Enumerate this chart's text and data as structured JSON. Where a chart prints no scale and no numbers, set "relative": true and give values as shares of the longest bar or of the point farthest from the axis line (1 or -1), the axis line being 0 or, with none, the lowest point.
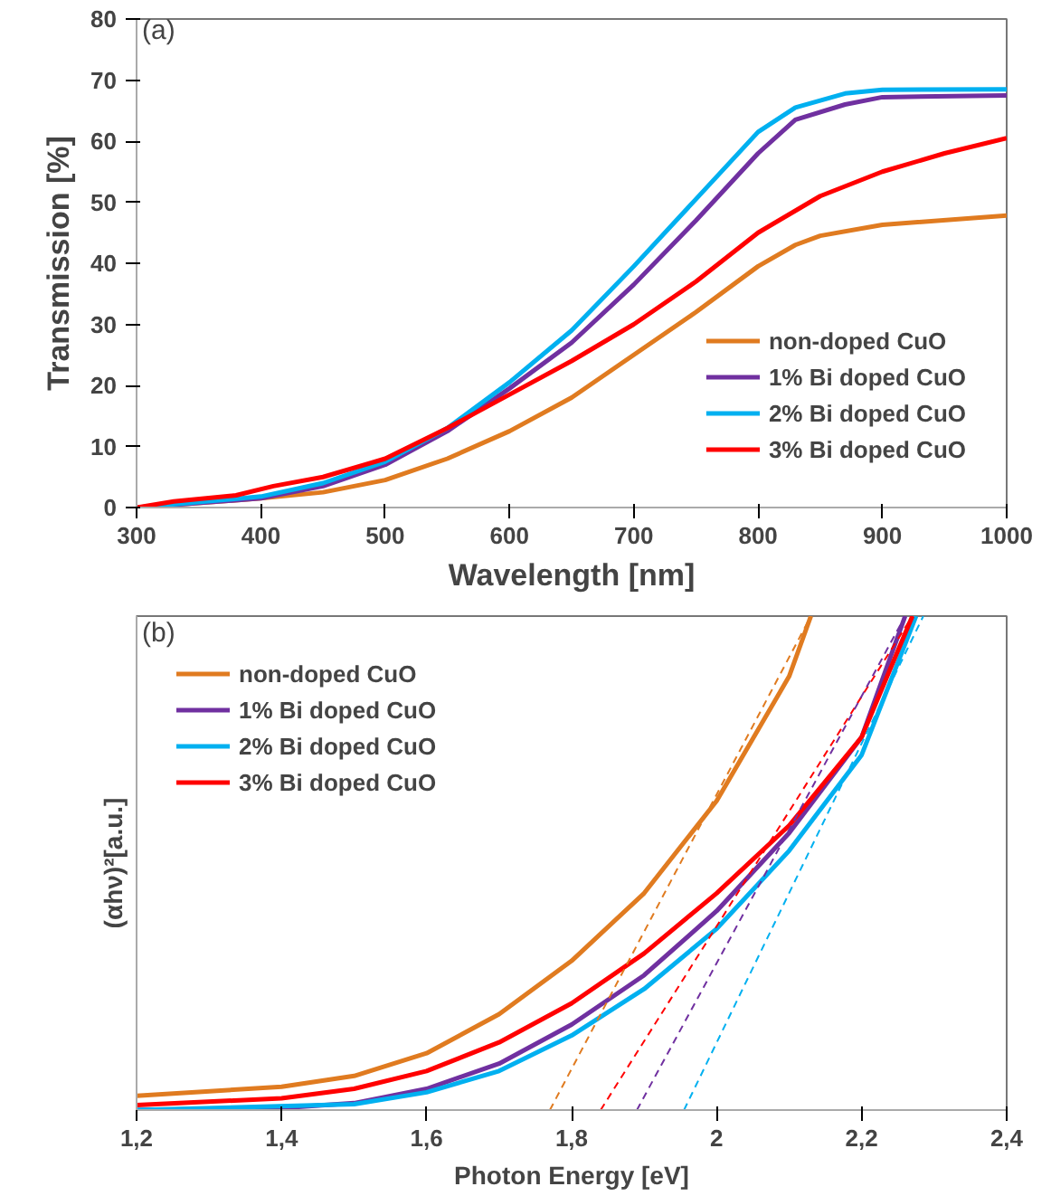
{
  "chart_data": [
    {
      "type": "line",
      "xlabel": "Wavelength [nm]",
      "ylabel": "Transmission [%]",
      "annotations": [
        "(a)"
      ],
      "xlim": [
        300,
        1000
      ],
      "xticks": [
        300,
        400,
        500,
        600,
        700,
        800,
        900,
        1000
      ],
      "ylim": [
        0,
        80
      ],
      "yticks": [
        0,
        10,
        20,
        30,
        40,
        50,
        60,
        70,
        80
      ],
      "legend": "bottom right",
      "grid": false,
      "series": [
        {
          "name": "non-doped CuO",
          "color": "#e07b20",
          "x": [
            300,
            400,
            450,
            500,
            550,
            600,
            650,
            700,
            750,
            800,
            830,
            850,
            900,
            1000
          ],
          "values": [
            0,
            1.5,
            2.5,
            4.5,
            8,
            12.5,
            18,
            25,
            32,
            39.5,
            43,
            44.5,
            46.3,
            47.8
          ]
        },
        {
          "name": "1% Bi doped CuO",
          "color": "#7030a0",
          "x": [
            300,
            400,
            450,
            500,
            550,
            600,
            650,
            700,
            750,
            800,
            830,
            870,
            900,
            1000
          ],
          "values": [
            0,
            1.5,
            3.5,
            7,
            12.5,
            19.5,
            27,
            36.5,
            47,
            58,
            63.5,
            66,
            67.2,
            67.5
          ]
        },
        {
          "name": "2% Bi doped CuO",
          "color": "#00b0f0",
          "x": [
            300,
            400,
            450,
            500,
            550,
            600,
            650,
            700,
            750,
            800,
            830,
            870,
            900,
            1000
          ],
          "values": [
            0,
            1.8,
            4,
            7.5,
            13,
            20.5,
            29,
            39.5,
            50.5,
            61.5,
            65.5,
            67.8,
            68.4,
            68.5
          ]
        },
        {
          "name": "3% Bi doped CuO",
          "color": "#ff0000",
          "x": [
            300,
            330,
            380,
            410,
            450,
            500,
            550,
            600,
            650,
            700,
            750,
            800,
            850,
            900,
            950,
            1000
          ],
          "values": [
            0,
            1,
            2,
            3.5,
            5,
            8,
            13,
            18.5,
            24,
            30,
            37,
            45,
            51,
            55,
            58,
            60.5
          ]
        }
      ]
    },
    {
      "type": "line",
      "relative": true,
      "xlabel": "Photon Energy [eV]",
      "ylabel": "(αhν)²[a.u.]",
      "annotations": [
        "(b)"
      ],
      "xlim": [
        1.2,
        2.4
      ],
      "xticks": [
        {
          "value": 1.2,
          "label": "1,2"
        },
        {
          "value": 1.4,
          "label": "1,4"
        },
        {
          "value": 1.6,
          "label": "1,6"
        },
        {
          "value": 1.8,
          "label": "1,8"
        },
        2,
        {
          "value": 2.2,
          "label": "2,2"
        },
        {
          "value": 2.4,
          "label": "2,4"
        }
      ],
      "legend": "top left",
      "grid": false,
      "series": [
        {
          "name": "non-doped CuO",
          "color": "#e07b20",
          "x": [
            1.2,
            1.4,
            1.5,
            1.6,
            1.7,
            1.8,
            1.9,
            2.0,
            2.1,
            2.13
          ],
          "values": [
            0.029,
            0.047,
            0.069,
            0.115,
            0.194,
            0.302,
            0.439,
            0.626,
            0.878,
            1
          ]
        },
        {
          "name": "1% Bi doped CuO",
          "color": "#7030a0",
          "x": [
            1.2,
            1.4,
            1.5,
            1.6,
            1.7,
            1.8,
            1.9,
            2.0,
            2.1,
            2.2,
            2.26
          ],
          "values": [
            0,
            0.004,
            0.014,
            0.043,
            0.094,
            0.173,
            0.273,
            0.403,
            0.561,
            0.755,
            1
          ]
        },
        {
          "name": "2% Bi doped CuO",
          "color": "#00b0f0",
          "x": [
            1.2,
            1.5,
            1.6,
            1.7,
            1.8,
            1.9,
            2.0,
            2.1,
            2.2,
            2.275
          ],
          "values": [
            0,
            0.012,
            0.036,
            0.079,
            0.151,
            0.245,
            0.367,
            0.525,
            0.719,
            1
          ]
        },
        {
          "name": "3% Bi doped CuO",
          "color": "#ff0000",
          "x": [
            1.2,
            1.4,
            1.5,
            1.6,
            1.7,
            1.8,
            1.9,
            2.0,
            2.1,
            2.2,
            2.27
          ],
          "values": [
            0.01,
            0.024,
            0.043,
            0.079,
            0.137,
            0.216,
            0.317,
            0.439,
            0.576,
            0.755,
            1
          ]
        },
        {
          "color": "#e07b20",
          "line_style": "dashed",
          "x": [
            1.77,
            2.13
          ],
          "values": [
            0,
            1
          ]
        },
        {
          "color": "#ff0000",
          "line_style": "dashed",
          "x": [
            1.84,
            2.27
          ],
          "values": [
            0,
            1
          ]
        },
        {
          "color": "#7030a0",
          "line_style": "dashed",
          "x": [
            1.89,
            2.26
          ],
          "values": [
            0,
            1
          ]
        },
        {
          "color": "#00b0f0",
          "line_style": "dashed",
          "x": [
            1.955,
            2.285
          ],
          "values": [
            0,
            1
          ]
        }
      ]
    }
  ]
}
